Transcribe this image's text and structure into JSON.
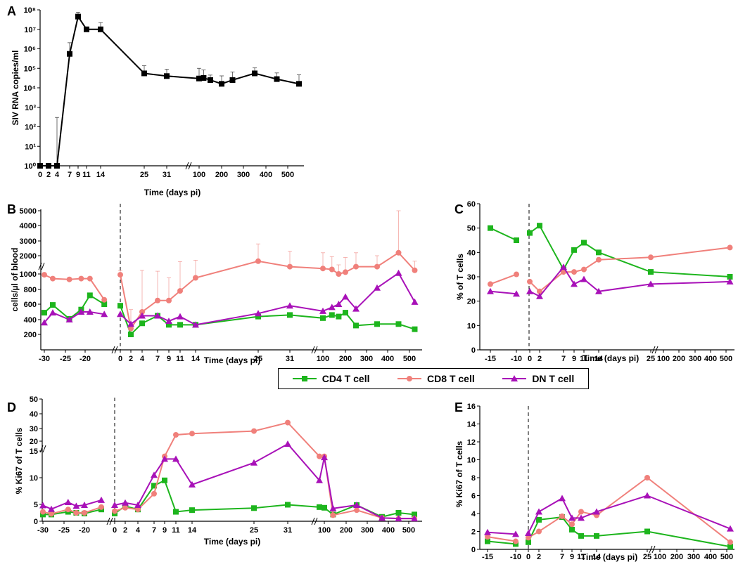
{
  "legend": [
    {
      "name": "CD4 T cell",
      "color": "#1DB51D",
      "marker": "square"
    },
    {
      "name": "CD8 T cell",
      "color": "#F0807B",
      "marker": "circle"
    },
    {
      "name": "DN T cell",
      "color": "#A811B8",
      "marker": "triangle"
    }
  ],
  "chart_data": [
    {
      "panel": "A",
      "type": "line",
      "ylabel": "SIV RNA copies/ml",
      "xlabel": "Time (days pi)",
      "yscale": "log",
      "yticks": [
        "10⁰",
        "10¹",
        "10²",
        "10³",
        "10⁴",
        "10⁵",
        "10⁶",
        "10⁷",
        "10⁸"
      ],
      "xticks": [
        "0",
        "2",
        "4",
        "7",
        "9",
        "11",
        "14",
        "25",
        "31",
        "100",
        "200",
        "300",
        "400",
        "500"
      ],
      "series": [
        {
          "color": "#000000",
          "marker": "square",
          "x": [
            0,
            2,
            4,
            7,
            9,
            11,
            14,
            25,
            31,
            100,
            120,
            150,
            200,
            250,
            350,
            450,
            550
          ],
          "y": [
            1,
            1,
            1,
            550000,
            45000000,
            10000000,
            10000000,
            55000,
            40000,
            30000,
            32000,
            25000,
            16000,
            25000,
            55000,
            28000,
            16000
          ],
          "err": [
            0,
            0,
            300,
            1500000,
            30000000,
            2000000,
            12000000,
            80000,
            50000,
            70000,
            50000,
            20000,
            25000,
            40000,
            50000,
            30000,
            30000
          ]
        }
      ]
    },
    {
      "panel": "B",
      "type": "line",
      "ylabel": "cells/µl of blood",
      "xlabel": "Time (days pi)",
      "yticks": [
        "200",
        "400",
        "600",
        "800",
        "1000",
        "2000",
        "3000",
        "4000",
        "5000"
      ],
      "xticks_pre": [
        "-30",
        "-25",
        "-20"
      ],
      "xticks": [
        "0",
        "2",
        "4",
        "7",
        "9",
        "11",
        "14",
        "25",
        "31",
        "100",
        "200",
        "300",
        "400",
        "500"
      ],
      "series": [
        {
          "name": "CD4 T cell",
          "color": "#1DB51D",
          "x_pre": [
            -30,
            -28,
            -24,
            -21,
            -19,
            -16
          ],
          "y_pre": [
            490,
            590,
            410,
            530,
            720,
            600
          ],
          "x": [
            0,
            2,
            4,
            7,
            9,
            11,
            14,
            25,
            31,
            100,
            140,
            170,
            200,
            250,
            350,
            450,
            550
          ],
          "y": [
            580,
            200,
            350,
            450,
            330,
            330,
            330,
            440,
            460,
            420,
            460,
            440,
            490,
            320,
            340,
            340,
            270
          ]
        },
        {
          "name": "CD8 T cell",
          "color": "#F0807B",
          "x_pre": [
            -30,
            -28,
            -24,
            -21,
            -19,
            -16
          ],
          "y_pre": [
            990,
            940,
            930,
            940,
            940,
            660
          ],
          "x": [
            0,
            2,
            4,
            7,
            9,
            11,
            14,
            25,
            31,
            100,
            140,
            170,
            200,
            250,
            350,
            450,
            550
          ],
          "y": [
            990,
            280,
            500,
            650,
            650,
            780,
            950,
            1700,
            1400,
            1300,
            1250,
            1000,
            1100,
            1400,
            1400,
            2200,
            1200
          ],
          "err": [
            200,
            250,
            700,
            500,
            300,
            900,
            800,
            1100,
            900,
            900,
            700,
            500,
            800,
            800,
            600,
            3000,
            500
          ]
        },
        {
          "name": "DN T cell",
          "color": "#A811B8",
          "x_pre": [
            -30,
            -28,
            -24,
            -21,
            -19,
            -16
          ],
          "y_pre": [
            360,
            490,
            400,
            500,
            500,
            470
          ],
          "x": [
            0,
            2,
            4,
            7,
            9,
            11,
            14,
            25,
            31,
            100,
            140,
            170,
            200,
            250,
            350,
            450,
            550
          ],
          "y": [
            470,
            340,
            450,
            450,
            380,
            440,
            330,
            480,
            580,
            510,
            560,
            600,
            700,
            540,
            820,
            1050,
            630
          ]
        }
      ]
    },
    {
      "panel": "C",
      "type": "line",
      "ylabel": "% of T cells",
      "xlabel": "Time (days pi)",
      "ylim": [
        0,
        60
      ],
      "yticks": [
        "0",
        "10",
        "20",
        "30",
        "40",
        "50",
        "60"
      ],
      "xticks_pre": [
        "-15",
        "-10"
      ],
      "xticks": [
        "0",
        "2",
        "7",
        "9",
        "11",
        "14",
        "25",
        "100",
        "200",
        "300",
        "400",
        "500"
      ],
      "series": [
        {
          "name": "CD4 T cell",
          "color": "#1DB51D",
          "x_pre": [
            -15,
            -10
          ],
          "y_pre": [
            50,
            45
          ],
          "x": [
            0,
            2,
            7,
            9,
            11,
            14,
            25,
            550
          ],
          "y": [
            48,
            51,
            33,
            41,
            44,
            40,
            32,
            30
          ]
        },
        {
          "name": "CD8 T cell",
          "color": "#F0807B",
          "x_pre": [
            -15,
            -10
          ],
          "y_pre": [
            27,
            31
          ],
          "x": [
            0,
            2,
            7,
            9,
            11,
            14,
            25,
            550
          ],
          "y": [
            28,
            24,
            32,
            32,
            33,
            37,
            38,
            42
          ]
        },
        {
          "name": "DN T cell",
          "color": "#A811B8",
          "x_pre": [
            -15,
            -10
          ],
          "y_pre": [
            24,
            23
          ],
          "x": [
            0,
            2,
            7,
            9,
            11,
            14,
            25,
            550
          ],
          "y": [
            24,
            22,
            34,
            27,
            29,
            24,
            27,
            28
          ]
        }
      ]
    },
    {
      "panel": "D",
      "type": "line",
      "ylabel": "% Ki67 of T cells",
      "xlabel": "Time (days pi)",
      "yticks_upper": [
        "20",
        "30",
        "40",
        "50"
      ],
      "yticks_lower": [
        "0",
        "5",
        "10",
        "15"
      ],
      "xticks_pre": [
        "-30",
        "-25",
        "-20"
      ],
      "xticks": [
        "0",
        "2",
        "4",
        "7",
        "9",
        "11",
        "14",
        "25",
        "31",
        "100",
        "200",
        "300",
        "400",
        "500"
      ],
      "series": [
        {
          "name": "CD4 T cell",
          "color": "#1DB51D",
          "x_pre": [
            -30,
            -28,
            -24,
            -22,
            -20,
            -16
          ],
          "y_pre": [
            2,
            2,
            2.8,
            2.5,
            2.3,
            3.5
          ],
          "x": [
            0,
            2,
            4,
            7,
            9,
            11,
            14,
            25,
            31,
            90,
            100,
            140,
            250,
            370,
            450,
            550
          ],
          "y": [
            2.3,
            4.5,
            3.5,
            8.5,
            9.5,
            2.8,
            3.3,
            3.9,
            4.9,
            4.2,
            4.0,
            2.0,
            4.8,
            1.3,
            2.5,
            2.0
          ]
        },
        {
          "name": "CD8 T cell",
          "color": "#F0807B",
          "x_pre": [
            -30,
            -28,
            -24,
            -22,
            -20,
            -16
          ],
          "y_pre": [
            2.8,
            2.2,
            3.5,
            2.5,
            2.5,
            4.2
          ],
          "x": [
            0,
            2,
            4,
            7,
            9,
            11,
            14,
            25,
            31,
            90,
            100,
            140,
            250,
            370,
            450,
            550
          ],
          "y": [
            3,
            4,
            3.5,
            7,
            14,
            25,
            26,
            28,
            34,
            14,
            14,
            1.8,
            3.3,
            1,
            0.8,
            0.8
          ]
        },
        {
          "name": "DN T cell",
          "color": "#A811B8",
          "x_pre": [
            -30,
            -28,
            -24,
            -22,
            -20,
            -16
          ],
          "y_pre": [
            4.7,
            3.6,
            5.4,
            4.5,
            4.8,
            5.8
          ],
          "x": [
            0,
            2,
            4,
            7,
            9,
            11,
            14,
            25,
            31,
            90,
            100,
            140,
            250,
            370,
            450,
            550
          ],
          "y": [
            4.8,
            5.3,
            4.8,
            10.5,
            13.5,
            13.5,
            8.7,
            12.8,
            17.5,
            9.5,
            13.8,
            3.8,
            4.8,
            1.0,
            0.8,
            0.8
          ]
        }
      ]
    },
    {
      "panel": "E",
      "type": "line",
      "ylabel": "% Ki67 of T cells",
      "xlabel": "Time (days pi)",
      "ylim": [
        0,
        16
      ],
      "yticks": [
        "0",
        "2",
        "4",
        "6",
        "8",
        "10",
        "12",
        "14",
        "16"
      ],
      "xticks_pre": [
        "-15",
        "-10"
      ],
      "xticks": [
        "0",
        "2",
        "7",
        "9",
        "11",
        "14",
        "25",
        "100",
        "200",
        "300",
        "400",
        "500"
      ],
      "series": [
        {
          "name": "CD4 T cell",
          "color": "#1DB51D",
          "x_pre": [
            -15,
            -10
          ],
          "y_pre": [
            0.9,
            0.6
          ],
          "x": [
            0,
            2,
            7,
            9,
            11,
            14,
            25,
            550
          ],
          "y": [
            0.8,
            3.3,
            3.6,
            2.2,
            1.5,
            1.5,
            2.0,
            0.3
          ]
        },
        {
          "name": "CD8 T cell",
          "color": "#F0807B",
          "x_pre": [
            -15,
            -10
          ],
          "y_pre": [
            1.4,
            0.9
          ],
          "x": [
            0,
            2,
            7,
            9,
            11,
            14,
            25,
            550
          ],
          "y": [
            1.3,
            2.0,
            3.7,
            2.8,
            4.2,
            3.8,
            8.0,
            0.8
          ]
        },
        {
          "name": "DN T cell",
          "color": "#A811B8",
          "x_pre": [
            -15,
            -10
          ],
          "y_pre": [
            1.9,
            1.7
          ],
          "x": [
            0,
            2,
            7,
            9,
            11,
            14,
            25,
            550
          ],
          "y": [
            1.8,
            4.2,
            5.7,
            3.5,
            3.5,
            4.2,
            6.0,
            2.3
          ]
        }
      ]
    }
  ]
}
